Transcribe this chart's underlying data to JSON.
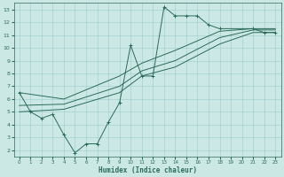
{
  "xlabel": "Humidex (Indice chaleur)",
  "bg_color": "#cce8e4",
  "grid_color": "#99cccc",
  "line_color": "#2a6b5a",
  "xlim": [
    -0.5,
    23.5
  ],
  "ylim": [
    1.5,
    13.5
  ],
  "xticks": [
    0,
    1,
    2,
    3,
    4,
    5,
    6,
    7,
    8,
    9,
    10,
    11,
    12,
    13,
    14,
    15,
    16,
    17,
    18,
    19,
    20,
    21,
    22,
    23
  ],
  "yticks": [
    2,
    3,
    4,
    5,
    6,
    7,
    8,
    9,
    10,
    11,
    12,
    13
  ],
  "main_x": [
    0,
    1,
    2,
    3,
    4,
    5,
    6,
    7,
    8,
    9,
    10,
    11,
    12,
    13,
    14,
    15,
    16,
    17,
    18,
    21,
    22,
    23
  ],
  "main_y": [
    6.5,
    5.0,
    4.5,
    4.8,
    3.2,
    1.8,
    2.5,
    2.5,
    4.2,
    5.7,
    10.2,
    7.8,
    7.8,
    13.2,
    12.5,
    12.5,
    12.5,
    11.8,
    11.5,
    11.5,
    11.2,
    11.2
  ],
  "line1_x": [
    0,
    4,
    9,
    11,
    14,
    18,
    21,
    23
  ],
  "line1_y": [
    5.0,
    5.2,
    6.5,
    7.8,
    8.5,
    10.3,
    11.2,
    11.2
  ],
  "line2_x": [
    0,
    4,
    9,
    11,
    14,
    18,
    21,
    23
  ],
  "line2_y": [
    5.5,
    5.6,
    7.0,
    8.2,
    9.0,
    10.8,
    11.4,
    11.4
  ],
  "line3_x": [
    0,
    4,
    9,
    11,
    14,
    18,
    21,
    23
  ],
  "line3_y": [
    6.5,
    6.0,
    7.8,
    8.8,
    9.8,
    11.3,
    11.5,
    11.5
  ]
}
